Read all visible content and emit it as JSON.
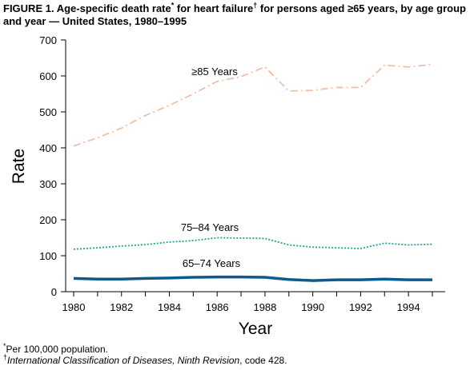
{
  "figure": {
    "title_prefix": "FIGURE 1. Age-specific death rate",
    "title_mark1": "*",
    "title_middle": " for heart failure",
    "title_mark2": "†",
    "title_rest": " for persons aged ≥65 years, by age group and year — United States, 1980–1995",
    "footnote1_mark": "*",
    "footnote1_text": "Per 100,000 population.",
    "footnote2_mark": "†",
    "footnote2_title": "International Classification of Diseases, Ninth Revision",
    "footnote2_rest": ", code 428."
  },
  "chart_data": {
    "type": "line",
    "xlabel": "Year",
    "ylabel": "Rate",
    "xlim": [
      1980,
      1995
    ],
    "ylim": [
      0,
      700
    ],
    "x_ticks": [
      1980,
      1982,
      1984,
      1986,
      1988,
      1990,
      1992,
      1994
    ],
    "y_ticks": [
      0,
      100,
      200,
      300,
      400,
      500,
      600,
      700
    ],
    "grid": false,
    "legend": "inline labels",
    "x": [
      1980,
      1981,
      1982,
      1983,
      1984,
      1985,
      1986,
      1987,
      1988,
      1989,
      1990,
      1991,
      1992,
      1993,
      1994,
      1995
    ],
    "series": [
      {
        "name": "≥85 Years",
        "color": "#f4b89e",
        "dash": "dash-dot",
        "values": [
          405,
          428,
          455,
          490,
          518,
          550,
          585,
          598,
          625,
          558,
          560,
          568,
          568,
          630,
          625,
          632
        ]
      },
      {
        "name": "75–84 Years",
        "color": "#1aa693",
        "dash": "dotted",
        "values": [
          118,
          122,
          127,
          131,
          138,
          142,
          150,
          149,
          148,
          130,
          124,
          122,
          120,
          135,
          130,
          132
        ]
      },
      {
        "name": "65–74 Years",
        "color": "#0f5a8c",
        "dash": "solid",
        "values": [
          37,
          35,
          35,
          37,
          38,
          40,
          41,
          41,
          40,
          34,
          31,
          33,
          33,
          35,
          33,
          33
        ]
      }
    ]
  }
}
